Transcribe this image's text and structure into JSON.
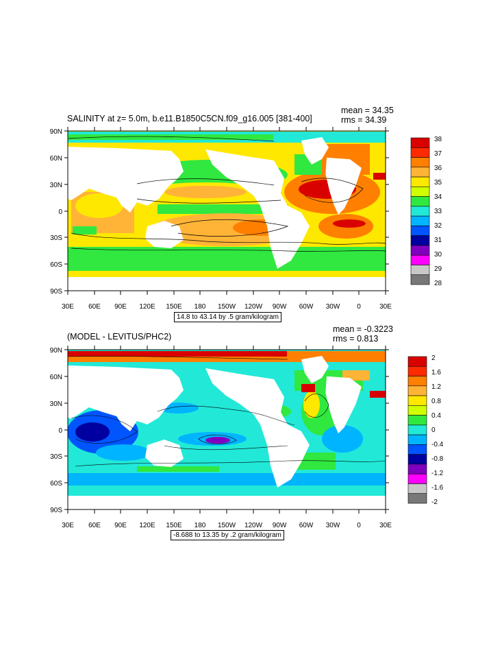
{
  "panels": [
    {
      "title": "SALINITY at z=   5.0m, b.e11.B1850C5CN.f09_g16.005 [381-400]",
      "mean": "mean = 34.35",
      "rms": "rms = 34.39",
      "range_note": "14.8 to 43.14 by .5 gram/kilogram",
      "colorbar_labels": [
        "38",
        "37",
        "36",
        "35",
        "34",
        "33",
        "32",
        "31",
        "30",
        "29",
        "28"
      ],
      "colorbar_colors": [
        "#d90000",
        "#ff2a00",
        "#ff7f00",
        "#ffb437",
        "#ffe800",
        "#d0ff00",
        "#30e840",
        "#22e8d8",
        "#00b4ff",
        "#0055ff",
        "#0000a0",
        "#8000c0",
        "#ff00ff",
        "#c8c8c8",
        "#787878"
      ]
    },
    {
      "title": "(MODEL - LEVITUS/PHC2)",
      "mean": "mean = -0.3223",
      "rms": "rms = 0.813",
      "range_note": "-8.688 to 13.35 by .2 gram/kilogram",
      "colorbar_labels": [
        "2",
        "1.6",
        "1.2",
        "0.8",
        "0.4",
        "0",
        "-0.4",
        "-0.8",
        "-1.2",
        "-1.6",
        "-2"
      ],
      "colorbar_colors": [
        "#d90000",
        "#ff2a00",
        "#ff7f00",
        "#ffb437",
        "#ffe800",
        "#d0ff00",
        "#30e840",
        "#22e8d8",
        "#00b4ff",
        "#0055ff",
        "#0000a0",
        "#8000c0",
        "#ff00ff",
        "#c8c8c8",
        "#787878"
      ]
    }
  ],
  "axes": {
    "lat_labels": [
      "90N",
      "60N",
      "30N",
      "0",
      "30S",
      "60S",
      "90S"
    ],
    "lon_labels": [
      "30E",
      "60E",
      "90E",
      "120E",
      "150E",
      "180",
      "150W",
      "120W",
      "90W",
      "60W",
      "30W",
      "0",
      "30E"
    ]
  }
}
